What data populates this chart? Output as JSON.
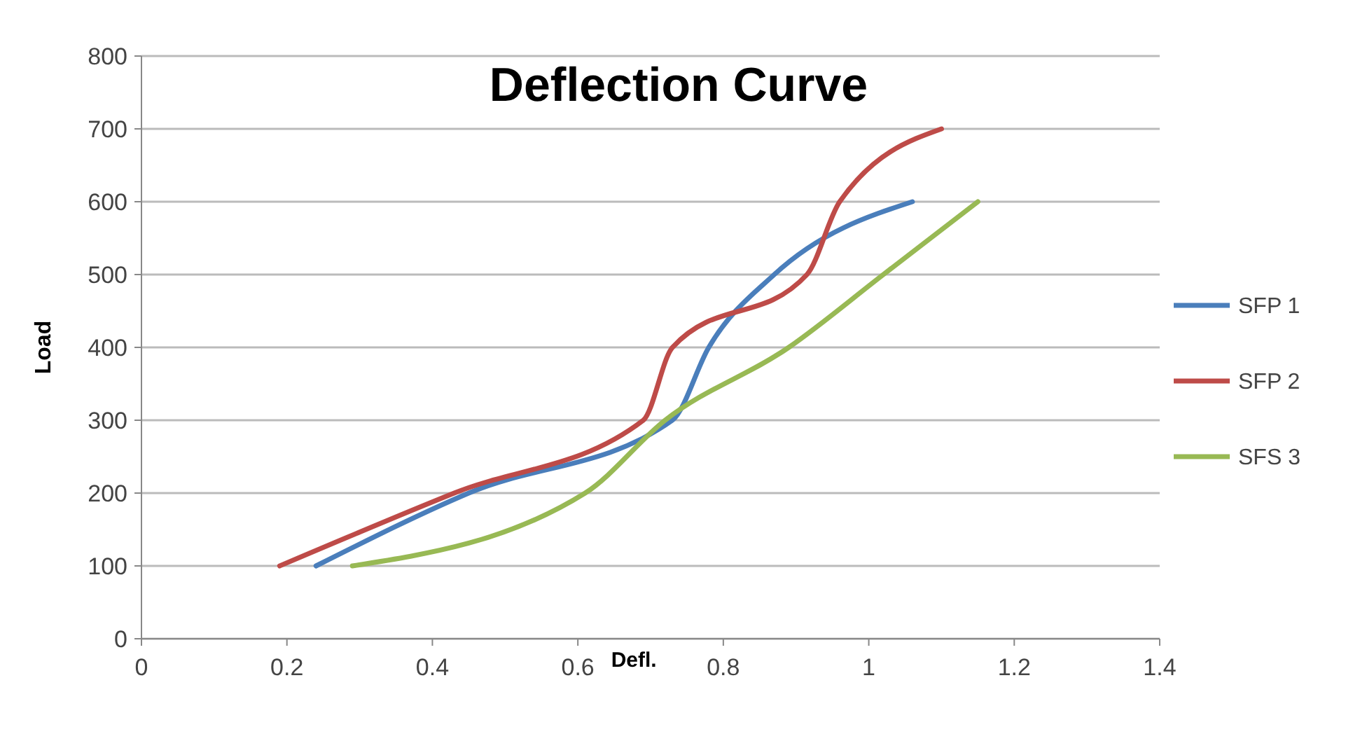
{
  "chart_data": {
    "type": "line",
    "title": "Deflection Curve",
    "xlabel": "Defl.",
    "ylabel": "Load",
    "xlim": [
      0,
      1.4
    ],
    "xticks": [
      0,
      0.2,
      0.4,
      0.6,
      0.8,
      1,
      1.2,
      1.4
    ],
    "ylim": [
      0,
      800
    ],
    "yticks": [
      0,
      100,
      200,
      300,
      400,
      500,
      600,
      700,
      800
    ],
    "grid": "y",
    "legend": "right",
    "marker": "none",
    "line_style": "solid",
    "series": [
      {
        "name": "SFP 1",
        "color": "#4a7ebb",
        "x": [
          0.24,
          0.45,
          0.73,
          0.78,
          0.87,
          1.06
        ],
        "values": [
          100,
          200,
          300,
          400,
          500,
          600
        ]
      },
      {
        "name": "SFP 2",
        "color": "#be4b48",
        "x": [
          0.19,
          0.43,
          0.69,
          0.73,
          0.915,
          0.96,
          1.1
        ],
        "values": [
          100,
          200,
          300,
          400,
          500,
          600,
          700
        ]
      },
      {
        "name": "SFS 3",
        "color": "#98b954",
        "x": [
          0.29,
          0.61,
          0.72,
          0.89,
          1.02,
          1.15
        ],
        "values": [
          100,
          200,
          300,
          400,
          500,
          600
        ]
      }
    ]
  }
}
